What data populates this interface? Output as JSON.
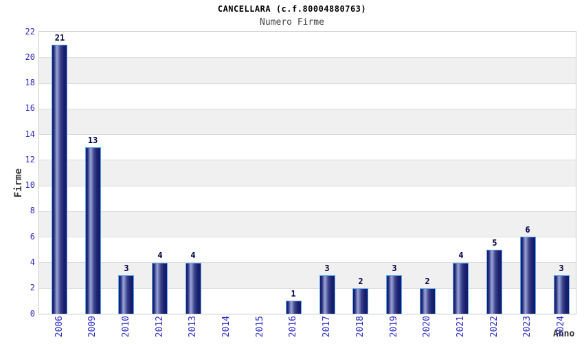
{
  "chart_data": {
    "type": "bar",
    "title": "CANCELLARA (c.f.80004880763)",
    "subtitle": "Numero Firme",
    "xlabel": "Anno",
    "ylabel": "Firme",
    "categories": [
      "2006",
      "2009",
      "2010",
      "2012",
      "2013",
      "2014",
      "2015",
      "2016",
      "2017",
      "2018",
      "2019",
      "2020",
      "2021",
      "2022",
      "2023",
      "2024"
    ],
    "values": [
      21,
      13,
      3,
      4,
      4,
      0,
      0,
      1,
      3,
      2,
      3,
      2,
      4,
      5,
      6,
      3
    ],
    "ylim": [
      0,
      22
    ],
    "yticks": [
      0,
      2,
      4,
      6,
      8,
      10,
      12,
      14,
      16,
      18,
      20,
      22
    ],
    "grid": true,
    "legend_position": "none",
    "value_labels": "shown above nonzero bars",
    "x_label_rotation_degrees": -90,
    "colors": {
      "axis_tick_text": "#2a2ac8",
      "value_label_text": "#000044",
      "bar_border": "#58a8f0",
      "bar_dark": "#141a6a",
      "bar_mid": "#3a4189",
      "bar_highlight": "#9aa3d8",
      "band_fill": "#f0f0f0",
      "gridline": "#dcdcdc",
      "plot_border": "#c8c8c8",
      "axis_title_text": "#333333",
      "title_text": "#000000",
      "subtitle_text": "#444444",
      "background": "#ffffff"
    }
  }
}
